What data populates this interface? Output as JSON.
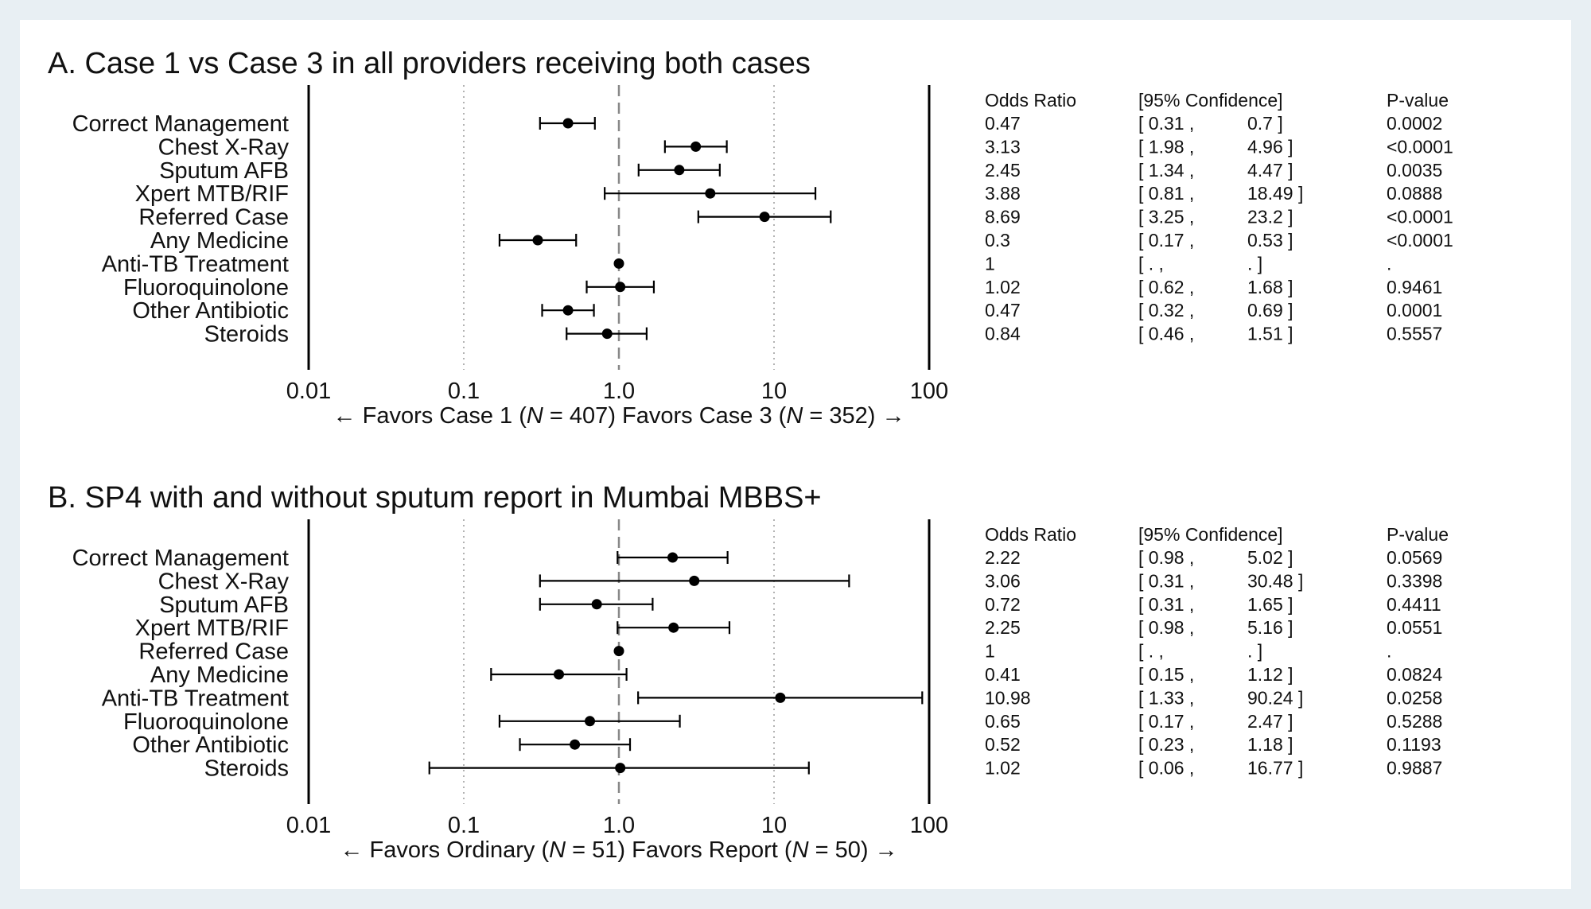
{
  "chart_data": [
    {
      "type": "scatter",
      "subtype": "forest-plot",
      "title": "A. Case 1 vs Case 3 in all providers receiving both cases",
      "x_scale": "log",
      "xlim": [
        0.01,
        100
      ],
      "x_ticks": [
        "0.01",
        "0.1",
        "1.0",
        "10",
        "100"
      ],
      "reference_line": 1,
      "favors_left_label": "Favors Case 1",
      "favors_left_n": "407",
      "favors_right_label": "Favors Case 3",
      "favors_right_n": "352",
      "table_headers": {
        "or": "Odds Ratio",
        "ci": "[95% Confidence]",
        "p": "P-value"
      },
      "rows": [
        {
          "label": "Correct Management",
          "or": 0.47,
          "lo": 0.31,
          "hi": 0.7,
          "or_text": "0.47",
          "lo_text": "[ 0.31 ,",
          "hi_text": "0.7 ]",
          "p_text": "0.0002"
        },
        {
          "label": "Chest X-Ray",
          "or": 3.13,
          "lo": 1.98,
          "hi": 4.96,
          "or_text": "3.13",
          "lo_text": "[ 1.98 ,",
          "hi_text": "4.96 ]",
          "p_text": "<0.0001"
        },
        {
          "label": "Sputum AFB",
          "or": 2.45,
          "lo": 1.34,
          "hi": 4.47,
          "or_text": "2.45",
          "lo_text": "[ 1.34 ,",
          "hi_text": "4.47 ]",
          "p_text": "0.0035"
        },
        {
          "label": "Xpert MTB/RIF",
          "or": 3.88,
          "lo": 0.81,
          "hi": 18.49,
          "or_text": "3.88",
          "lo_text": "[ 0.81 ,",
          "hi_text": "18.49 ]",
          "p_text": "0.0888"
        },
        {
          "label": "Referred Case",
          "or": 8.69,
          "lo": 3.25,
          "hi": 23.2,
          "or_text": "8.69",
          "lo_text": "[ 3.25 ,",
          "hi_text": "23.2 ]",
          "p_text": "<0.0001"
        },
        {
          "label": "Any Medicine",
          "or": 0.3,
          "lo": 0.17,
          "hi": 0.53,
          "or_text": "0.3",
          "lo_text": "[ 0.17 ,",
          "hi_text": "0.53 ]",
          "p_text": "<0.0001"
        },
        {
          "label": "Anti-TB Treatment",
          "or": 1,
          "lo": null,
          "hi": null,
          "or_text": "1",
          "lo_text": "[ . ,",
          "hi_text": ". ]",
          "p_text": "."
        },
        {
          "label": "Fluoroquinolone",
          "or": 1.02,
          "lo": 0.62,
          "hi": 1.68,
          "or_text": "1.02",
          "lo_text": "[ 0.62 ,",
          "hi_text": "1.68 ]",
          "p_text": "0.9461"
        },
        {
          "label": "Other Antibiotic",
          "or": 0.47,
          "lo": 0.32,
          "hi": 0.69,
          "or_text": "0.47",
          "lo_text": "[ 0.32 ,",
          "hi_text": "0.69 ]",
          "p_text": "0.0001"
        },
        {
          "label": "Steroids",
          "or": 0.84,
          "lo": 0.46,
          "hi": 1.51,
          "or_text": "0.84",
          "lo_text": "[ 0.46 ,",
          "hi_text": "1.51 ]",
          "p_text": "0.5557"
        }
      ]
    },
    {
      "type": "scatter",
      "subtype": "forest-plot",
      "title": "B. SP4 with and without sputum report in Mumbai MBBS+",
      "x_scale": "log",
      "xlim": [
        0.01,
        100
      ],
      "x_ticks": [
        "0.01",
        "0.1",
        "1.0",
        "10",
        "100"
      ],
      "reference_line": 1,
      "favors_left_label": "Favors Ordinary",
      "favors_left_n": "51",
      "favors_right_label": "Favors Report",
      "favors_right_n": "50",
      "table_headers": {
        "or": "Odds Ratio",
        "ci": "[95% Confidence]",
        "p": "P-value"
      },
      "rows": [
        {
          "label": "Correct Management",
          "or": 2.22,
          "lo": 0.98,
          "hi": 5.02,
          "or_text": "2.22",
          "lo_text": "[ 0.98 ,",
          "hi_text": "5.02 ]",
          "p_text": "0.0569"
        },
        {
          "label": "Chest X-Ray",
          "or": 3.06,
          "lo": 0.31,
          "hi": 30.48,
          "or_text": "3.06",
          "lo_text": "[ 0.31 ,",
          "hi_text": "30.48 ]",
          "p_text": "0.3398"
        },
        {
          "label": "Sputum AFB",
          "or": 0.72,
          "lo": 0.31,
          "hi": 1.65,
          "or_text": "0.72",
          "lo_text": "[ 0.31 ,",
          "hi_text": "1.65 ]",
          "p_text": "0.4411"
        },
        {
          "label": "Xpert MTB/RIF",
          "or": 2.25,
          "lo": 0.98,
          "hi": 5.16,
          "or_text": "2.25",
          "lo_text": "[ 0.98 ,",
          "hi_text": "5.16 ]",
          "p_text": "0.0551"
        },
        {
          "label": "Referred Case",
          "or": 1,
          "lo": null,
          "hi": null,
          "or_text": "1",
          "lo_text": "[ . ,",
          "hi_text": ". ]",
          "p_text": "."
        },
        {
          "label": "Any Medicine",
          "or": 0.41,
          "lo": 0.15,
          "hi": 1.12,
          "or_text": "0.41",
          "lo_text": "[ 0.15 ,",
          "hi_text": "1.12 ]",
          "p_text": "0.0824"
        },
        {
          "label": "Anti-TB Treatment",
          "or": 10.98,
          "lo": 1.33,
          "hi": 90.24,
          "or_text": "10.98",
          "lo_text": "[ 1.33 ,",
          "hi_text": "90.24 ]",
          "p_text": "0.0258"
        },
        {
          "label": "Fluoroquinolone",
          "or": 0.65,
          "lo": 0.17,
          "hi": 2.47,
          "or_text": "0.65",
          "lo_text": "[ 0.17 ,",
          "hi_text": "2.47 ]",
          "p_text": "0.5288"
        },
        {
          "label": "Other Antibiotic",
          "or": 0.52,
          "lo": 0.23,
          "hi": 1.18,
          "or_text": "0.52",
          "lo_text": "[ 0.23 ,",
          "hi_text": "1.18 ]",
          "p_text": "0.1193"
        },
        {
          "label": "Steroids",
          "or": 1.02,
          "lo": 0.06,
          "hi": 16.77,
          "or_text": "1.02",
          "lo_text": "[ 0.06 ,",
          "hi_text": "16.77 ]",
          "p_text": "0.9887"
        }
      ]
    }
  ]
}
